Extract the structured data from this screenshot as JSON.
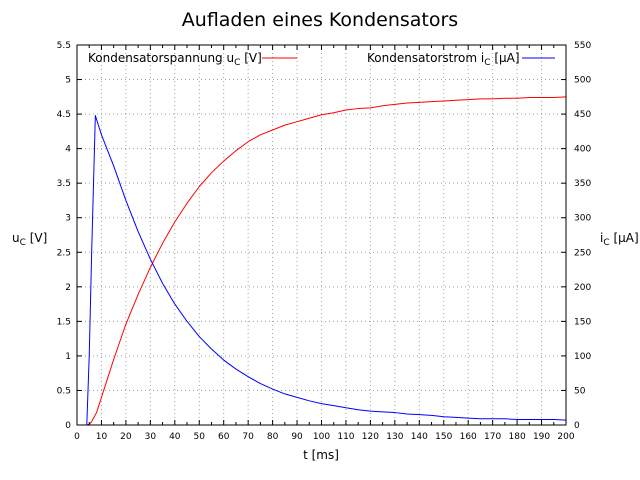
{
  "chart_data": {
    "type": "line",
    "title": "Aufladen eines Kondensators",
    "xlabel": "t [ms]",
    "ylabel": "u",
    "ylabel_sub": "C",
    "ylabel_unit": " [V]",
    "y2label": "i",
    "y2label_sub": "C",
    "y2label_unit": " [µA]",
    "xlim": [
      0,
      200
    ],
    "ylim": [
      0,
      5.5
    ],
    "y2lim": [
      0,
      550
    ],
    "xticks": [
      0,
      10,
      20,
      30,
      40,
      50,
      60,
      70,
      80,
      90,
      100,
      110,
      120,
      130,
      140,
      150,
      160,
      170,
      180,
      190,
      200
    ],
    "yticks": [
      0,
      0.5,
      1,
      1.5,
      2,
      2.5,
      3,
      3.5,
      4,
      4.5,
      5,
      5.5
    ],
    "y2ticks": [
      0,
      50,
      100,
      150,
      200,
      250,
      300,
      350,
      400,
      450,
      500,
      550
    ],
    "grid": true,
    "legend": "top",
    "series": [
      {
        "name": "Kondensatorspannung u",
        "name_sub": "C",
        "name_unit": " [V]",
        "axis": "left",
        "color": "#ff0000",
        "x": [
          4,
          5,
          6,
          8,
          10,
          12,
          15,
          20,
          25,
          30,
          35,
          40,
          45,
          50,
          55,
          60,
          65,
          70,
          75,
          80,
          85,
          90,
          95,
          100,
          105,
          110,
          115,
          120,
          125,
          130,
          135,
          140,
          145,
          150,
          155,
          160,
          165,
          170,
          175,
          180,
          185,
          190,
          195,
          200
        ],
        "values": [
          0,
          0.01,
          0.05,
          0.18,
          0.4,
          0.62,
          0.95,
          1.46,
          1.89,
          2.28,
          2.63,
          2.94,
          3.21,
          3.45,
          3.65,
          3.82,
          3.97,
          4.1,
          4.2,
          4.27,
          4.34,
          4.39,
          4.44,
          4.49,
          4.52,
          4.56,
          4.58,
          4.59,
          4.62,
          4.64,
          4.66,
          4.67,
          4.68,
          4.69,
          4.7,
          4.71,
          4.72,
          4.72,
          4.73,
          4.73,
          4.74,
          4.74,
          4.74,
          4.75
        ]
      },
      {
        "name": "Kondensatorstrom i",
        "name_sub": "C",
        "name_unit": " [µA]",
        "axis": "right",
        "color": "#0000ff",
        "x": [
          4,
          5,
          6,
          7.5,
          10,
          15,
          20,
          25,
          30,
          35,
          40,
          45,
          50,
          55,
          60,
          65,
          70,
          75,
          80,
          85,
          90,
          95,
          100,
          105,
          110,
          115,
          120,
          125,
          130,
          135,
          140,
          145,
          150,
          155,
          160,
          165,
          170,
          175,
          180,
          185,
          190,
          195,
          200
        ],
        "values": [
          0,
          100,
          250,
          448,
          420,
          375,
          325,
          280,
          240,
          205,
          175,
          150,
          128,
          110,
          94,
          81,
          70,
          60,
          52,
          45,
          40,
          35,
          31,
          28,
          25,
          22,
          20,
          19,
          18,
          16,
          15,
          14,
          12,
          11,
          10,
          9,
          9,
          9,
          8,
          8,
          8,
          8,
          7
        ]
      }
    ]
  }
}
